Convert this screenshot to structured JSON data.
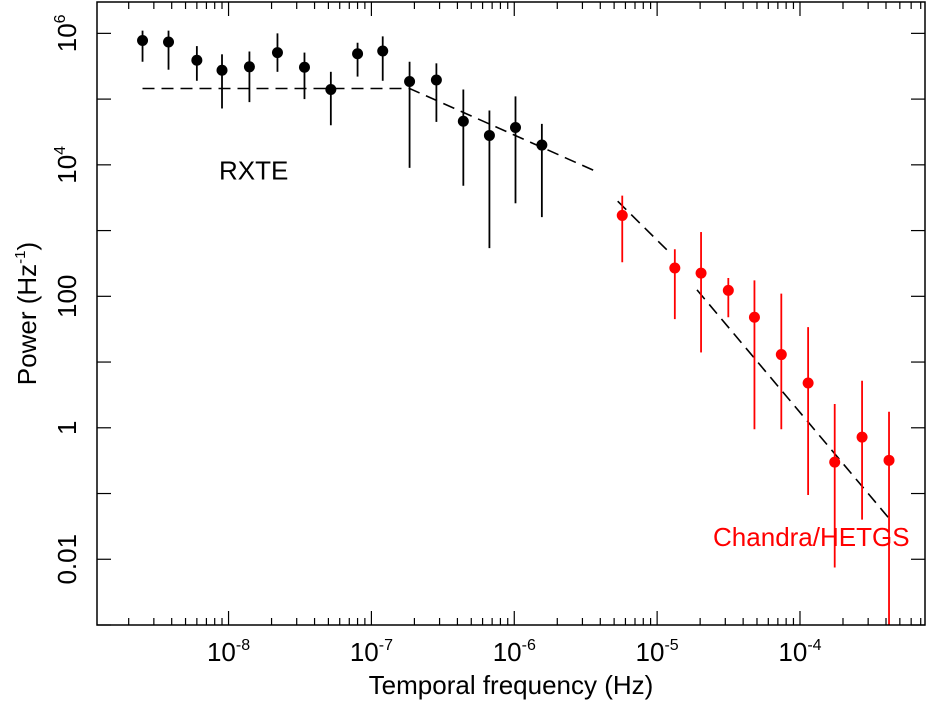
{
  "chart_data": {
    "type": "scatter",
    "title": "",
    "xlabel": "Temporal frequency (Hz)",
    "ylabel_main": "Power (Hz",
    "ylabel_sup": "-1",
    "ylabel_close": ")",
    "x_scale": "log",
    "y_scale": "log",
    "xlim": [
      1.2e-09,
      0.00075
    ],
    "ylim": [
      0.001,
      3000000
    ],
    "grid": false,
    "x_ticks": [
      {
        "value": 1e-08,
        "base": "10",
        "exp": "-8"
      },
      {
        "value": 1e-07,
        "base": "10",
        "exp": "-7"
      },
      {
        "value": 1e-06,
        "base": "10",
        "exp": "-6"
      },
      {
        "value": 1e-05,
        "base": "10",
        "exp": "-5"
      },
      {
        "value": 0.0001,
        "base": "10",
        "exp": "-4"
      }
    ],
    "y_ticks": [
      {
        "value": 0.01,
        "label": "0.01",
        "exp": ""
      },
      {
        "value": 1,
        "label": "1",
        "exp": ""
      },
      {
        "value": 100,
        "label": "100",
        "exp": ""
      },
      {
        "value": 10000,
        "label": "10",
        "exp": "4"
      },
      {
        "value": 1000000,
        "label": "10",
        "exp": "6"
      }
    ],
    "annotations": [
      {
        "text": "RXTE",
        "color": "#000000",
        "x": 1.5e-08,
        "y": 6000
      },
      {
        "text": "Chandra/HETGS",
        "color": "#ff0000",
        "x": 0.00012,
        "y": 0.016
      }
    ],
    "series": [
      {
        "color": "#000000",
        "points": [
          {
            "x": 2.5e-09,
            "y": 780000,
            "ylo": 370000,
            "yhi": 1100000
          },
          {
            "x": 3.8e-09,
            "y": 740000,
            "ylo": 280000,
            "yhi": 1100000
          },
          {
            "x": 6e-09,
            "y": 390000,
            "ylo": 190000,
            "yhi": 640000
          },
          {
            "x": 9e-09,
            "y": 275000,
            "ylo": 72000,
            "yhi": 480000
          },
          {
            "x": 1.4e-08,
            "y": 310000,
            "ylo": 90000,
            "yhi": 530000
          },
          {
            "x": 2.2e-08,
            "y": 510000,
            "ylo": 260000,
            "yhi": 1000000
          },
          {
            "x": 3.4e-08,
            "y": 305000,
            "ylo": 100000,
            "yhi": 510000
          },
          {
            "x": 5.2e-08,
            "y": 140000,
            "ylo": 40000,
            "yhi": 260000
          },
          {
            "x": 8e-08,
            "y": 490000,
            "ylo": 220000,
            "yhi": 720000
          },
          {
            "x": 1.2e-07,
            "y": 540000,
            "ylo": 190000,
            "yhi": 900000
          },
          {
            "x": 1.85e-07,
            "y": 185000,
            "ylo": 9000,
            "yhi": 370000
          },
          {
            "x": 2.85e-07,
            "y": 195000,
            "ylo": 45000,
            "yhi": 350000
          },
          {
            "x": 4.4e-07,
            "y": 46000,
            "ylo": 4800,
            "yhi": 140000
          },
          {
            "x": 6.7e-07,
            "y": 28000,
            "ylo": 540,
            "yhi": 67000
          },
          {
            "x": 1.02e-06,
            "y": 37000,
            "ylo": 2600,
            "yhi": 110000
          },
          {
            "x": 1.56e-06,
            "y": 20000,
            "ylo": 1600,
            "yhi": 42000
          }
        ]
      },
      {
        "color": "#ff0000",
        "points": [
          {
            "x": 5.7e-06,
            "y": 1700,
            "ylo": 330,
            "yhi": 3400
          },
          {
            "x": 1.33e-05,
            "y": 270,
            "ylo": 45,
            "yhi": 520
          },
          {
            "x": 2.03e-05,
            "y": 225,
            "ylo": 14,
            "yhi": 950
          },
          {
            "x": 3.15e-05,
            "y": 123,
            "ylo": 48,
            "yhi": 190
          },
          {
            "x": 4.8e-05,
            "y": 48,
            "ylo": 0.95,
            "yhi": 175
          },
          {
            "x": 7.4e-05,
            "y": 13,
            "ylo": 0.95,
            "yhi": 110
          },
          {
            "x": 0.000114,
            "y": 4.8,
            "ylo": 0.095,
            "yhi": 34
          },
          {
            "x": 0.000175,
            "y": 0.3,
            "ylo": 0.0075,
            "yhi": 2.3
          },
          {
            "x": 0.000272,
            "y": 0.72,
            "ylo": 0.04,
            "yhi": 5.2
          },
          {
            "x": 0.00042,
            "y": 0.32,
            "ylo": 0.001,
            "yhi": 1.75
          }
        ]
      }
    ],
    "model_lines": [
      {
        "points": [
          [
            2.5e-09,
            145000
          ],
          [
            1.85e-07,
            145000
          ],
          [
            3.8e-06,
            7800
          ]
        ]
      },
      {
        "points": [
          [
            5.3e-06,
            2800
          ],
          [
            1.18e-05,
            500
          ]
        ]
      },
      {
        "points": [
          [
            1.9e-05,
            125
          ],
          [
            0.00042,
            0.042
          ]
        ]
      }
    ]
  }
}
